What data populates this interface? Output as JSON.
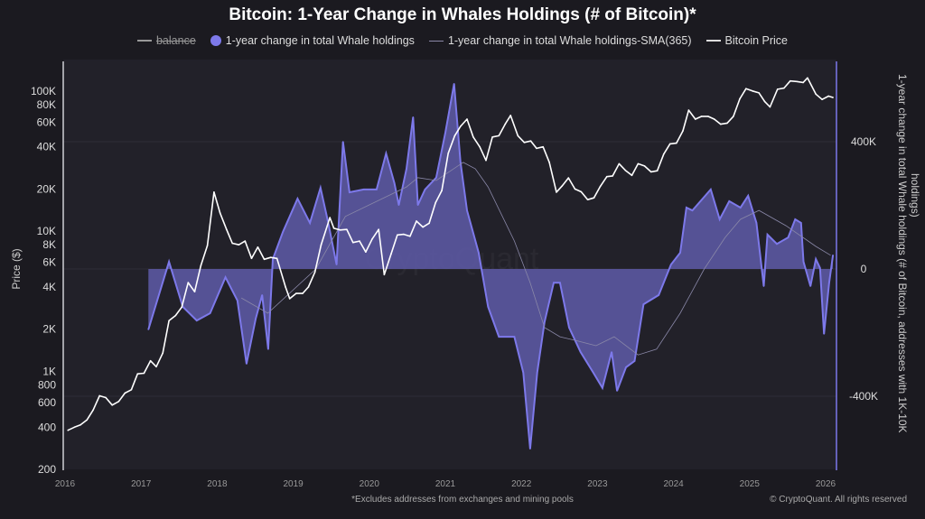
{
  "title": "Bitcoin: 1-Year Change in Whales Holdings (# of Bitcoin)*",
  "legend": [
    {
      "label": "balance",
      "style": "line-disabled"
    },
    {
      "label": "1-year change in total Whale holdings",
      "style": "dot"
    },
    {
      "label": "1-year change in total Whale holdings-SMA(365)",
      "style": "thin-line"
    },
    {
      "label": "Bitcoin Price",
      "style": "line"
    }
  ],
  "footnote": "*Excludes addresses from exchanges and mining pools",
  "copyright": "© CryptoQuant. All rights reserved",
  "watermark": "CryptoQuant",
  "colors": {
    "background": "#1b1a20",
    "whale_fill": "#5e5aa8",
    "whale_line": "#7d79ea",
    "sma": "#8a88a8",
    "price": "#ffffff"
  },
  "chart_data": {
    "type": "line",
    "title": "Bitcoin: 1-Year Change in Whales Holdings (# of Bitcoin)*",
    "xlabel": "",
    "x_ticks": [
      "2016",
      "2017",
      "2018",
      "2019",
      "2020",
      "2021",
      "2022",
      "2023",
      "2024",
      "2025",
      "2026"
    ],
    "y_left": {
      "label": "Price ($)",
      "scale": "log",
      "range": [
        200,
        130000
      ],
      "ticks": [
        {
          "v": 200,
          "t": "200"
        },
        {
          "v": 400,
          "t": "400"
        },
        {
          "v": 600,
          "t": "600"
        },
        {
          "v": 800,
          "t": "800"
        },
        {
          "v": 1000,
          "t": "1K"
        },
        {
          "v": 2000,
          "t": "2K"
        },
        {
          "v": 4000,
          "t": "4K"
        },
        {
          "v": 6000,
          "t": "6K"
        },
        {
          "v": 8000,
          "t": "8K"
        },
        {
          "v": 10000,
          "t": "10K"
        },
        {
          "v": 20000,
          "t": "20K"
        },
        {
          "v": 40000,
          "t": "40K"
        },
        {
          "v": 60000,
          "t": "60K"
        },
        {
          "v": 80000,
          "t": "80K"
        },
        {
          "v": 100000,
          "t": "100K"
        }
      ]
    },
    "y_right": {
      "label": "1-year change in total Whale holdings (# of Bitcoin, addresses with 1K-10K holdings)",
      "scale": "linear",
      "range": [
        -630000,
        650000
      ],
      "ticks": [
        {
          "v": 400000,
          "t": "400K"
        },
        {
          "v": 0,
          "t": "0"
        },
        {
          "v": -400000,
          "t": "-400K"
        }
      ]
    },
    "grid": true,
    "legend_position": "top",
    "series": [
      {
        "name": "1-year change in total Whale holdings",
        "type": "area",
        "axis": "right",
        "points": [
          [
            "2017-02-05",
            -190000
          ],
          [
            "2017-05-15",
            23000
          ],
          [
            "2017-07-20",
            -119000
          ],
          [
            "2017-09-25",
            -162000
          ],
          [
            "2017-11-28",
            -139000
          ],
          [
            "2018-02-10",
            -26000
          ],
          [
            "2018-04-08",
            -99000
          ],
          [
            "2018-05-22",
            -298000
          ],
          [
            "2018-07-05",
            -156000
          ],
          [
            "2018-08-05",
            -82000
          ],
          [
            "2018-09-03",
            -252000
          ],
          [
            "2018-09-25",
            31000
          ],
          [
            "2018-11-12",
            116000
          ],
          [
            "2019-01-22",
            221000
          ],
          [
            "2019-03-22",
            145000
          ],
          [
            "2019-05-12",
            255000
          ],
          [
            "2019-06-18",
            145000
          ],
          [
            "2019-07-28",
            14000
          ],
          [
            "2019-08-28",
            400000
          ],
          [
            "2019-09-28",
            241000
          ],
          [
            "2019-12-05",
            250000
          ],
          [
            "2020-02-05",
            250000
          ],
          [
            "2020-03-22",
            363000
          ],
          [
            "2020-05-01",
            270000
          ],
          [
            "2020-05-22",
            201000
          ],
          [
            "2020-06-28",
            315000
          ],
          [
            "2020-07-30",
            477000
          ],
          [
            "2020-08-22",
            201000
          ],
          [
            "2020-09-25",
            250000
          ],
          [
            "2020-11-18",
            287000
          ],
          [
            "2021-01-01",
            428000
          ],
          [
            "2021-02-12",
            582000
          ],
          [
            "2021-03-15",
            335000
          ],
          [
            "2021-04-15",
            184000
          ],
          [
            "2021-06-10",
            51000
          ],
          [
            "2021-07-25",
            -119000
          ],
          [
            "2021-09-15",
            -213000
          ],
          [
            "2021-11-28",
            -213000
          ],
          [
            "2022-01-10",
            -326000
          ],
          [
            "2022-02-12",
            -565000
          ],
          [
            "2022-03-18",
            -326000
          ],
          [
            "2022-04-22",
            -167000
          ],
          [
            "2022-06-05",
            -43000
          ],
          [
            "2022-07-05",
            -43000
          ],
          [
            "2022-08-18",
            -184000
          ],
          [
            "2022-10-12",
            -261000
          ],
          [
            "2022-12-12",
            -326000
          ],
          [
            "2023-01-25",
            -374000
          ],
          [
            "2023-03-10",
            -261000
          ],
          [
            "2023-04-05",
            -383000
          ],
          [
            "2023-05-18",
            -309000
          ],
          [
            "2023-06-28",
            -289000
          ],
          [
            "2023-08-10",
            -111000
          ],
          [
            "2023-10-22",
            -82000
          ],
          [
            "2023-12-20",
            14000
          ],
          [
            "2024-02-02",
            51000
          ],
          [
            "2024-03-03",
            193000
          ],
          [
            "2024-04-01",
            184000
          ],
          [
            "2024-06-28",
            250000
          ],
          [
            "2024-08-10",
            156000
          ],
          [
            "2024-09-25",
            213000
          ],
          [
            "2024-11-18",
            193000
          ],
          [
            "2024-12-25",
            230000
          ],
          [
            "2025-02-03",
            145000
          ],
          [
            "2025-02-28",
            3000
          ],
          [
            "2025-03-10",
            -54000
          ],
          [
            "2025-03-28",
            108000
          ],
          [
            "2025-05-12",
            79000
          ],
          [
            "2025-07-05",
            99000
          ],
          [
            "2025-08-08",
            156000
          ],
          [
            "2025-09-05",
            145000
          ],
          [
            "2025-09-17",
            23000
          ],
          [
            "2025-10-20",
            -54000
          ],
          [
            "2025-11-15",
            31000
          ],
          [
            "2025-12-05",
            3000
          ],
          [
            "2025-12-24",
            -204000
          ],
          [
            "2026-01-18",
            -43000
          ],
          [
            "2026-02-05",
            43000
          ]
        ]
      },
      {
        "name": "1-year change in total Whale holdings-SMA(365)",
        "type": "line",
        "axis": "right",
        "points": [
          [
            "2018-04-27",
            -91000
          ],
          [
            "2018-09-01",
            -139000
          ],
          [
            "2019-04-20",
            0
          ],
          [
            "2019-09-08",
            165000
          ],
          [
            "2020-06-28",
            258000
          ],
          [
            "2020-08-22",
            287000
          ],
          [
            "2020-11-18",
            278000
          ],
          [
            "2021-03-28",
            335000
          ],
          [
            "2021-05-25",
            315000
          ],
          [
            "2021-07-25",
            258000
          ],
          [
            "2021-11-28",
            88000
          ],
          [
            "2022-02-12",
            -43000
          ],
          [
            "2022-04-22",
            -184000
          ],
          [
            "2022-07-05",
            -213000
          ],
          [
            "2022-09-15",
            -224000
          ],
          [
            "2022-12-25",
            -241000
          ],
          [
            "2023-03-22",
            -213000
          ],
          [
            "2023-07-15",
            -270000
          ],
          [
            "2023-10-12",
            -252000
          ],
          [
            "2024-02-02",
            -139000
          ],
          [
            "2024-05-28",
            0
          ],
          [
            "2024-09-05",
            99000
          ],
          [
            "2024-11-18",
            156000
          ],
          [
            "2025-02-15",
            184000
          ],
          [
            "2025-06-25",
            136000
          ],
          [
            "2025-11-15",
            71000
          ],
          [
            "2026-01-25",
            43000
          ]
        ]
      },
      {
        "name": "Bitcoin Price",
        "type": "line",
        "axis": "left",
        "points": [
          [
            "2016-01-15",
            380
          ],
          [
            "2016-02-15",
            400
          ],
          [
            "2016-03-15",
            415
          ],
          [
            "2016-04-15",
            450
          ],
          [
            "2016-05-15",
            530
          ],
          [
            "2016-06-15",
            670
          ],
          [
            "2016-07-15",
            650
          ],
          [
            "2016-08-15",
            575
          ],
          [
            "2016-09-15",
            610
          ],
          [
            "2016-10-15",
            700
          ],
          [
            "2016-11-15",
            740
          ],
          [
            "2016-12-15",
            960
          ],
          [
            "2017-01-15",
            970
          ],
          [
            "2017-02-15",
            1190
          ],
          [
            "2017-03-15",
            1080
          ],
          [
            "2017-04-15",
            1350
          ],
          [
            "2017-05-15",
            2300
          ],
          [
            "2017-06-15",
            2500
          ],
          [
            "2017-07-15",
            2870
          ],
          [
            "2017-08-15",
            4300
          ],
          [
            "2017-09-15",
            3700
          ],
          [
            "2017-10-15",
            5700
          ],
          [
            "2017-11-15",
            7900
          ],
          [
            "2017-12-17",
            19000
          ],
          [
            "2018-01-15",
            13500
          ],
          [
            "2018-02-15",
            10300
          ],
          [
            "2018-03-15",
            8200
          ],
          [
            "2018-04-15",
            8000
          ],
          [
            "2018-05-15",
            8500
          ],
          [
            "2018-06-15",
            6400
          ],
          [
            "2018-07-15",
            7700
          ],
          [
            "2018-08-15",
            6300
          ],
          [
            "2018-09-15",
            6500
          ],
          [
            "2018-10-15",
            6400
          ],
          [
            "2018-11-25",
            4000
          ],
          [
            "2018-12-15",
            3300
          ],
          [
            "2019-01-15",
            3600
          ],
          [
            "2019-02-15",
            3600
          ],
          [
            "2019-03-15",
            4000
          ],
          [
            "2019-04-15",
            5100
          ],
          [
            "2019-05-15",
            8000
          ],
          [
            "2019-06-26",
            12500
          ],
          [
            "2019-07-15",
            10500
          ],
          [
            "2019-08-15",
            10200
          ],
          [
            "2019-09-15",
            10300
          ],
          [
            "2019-10-15",
            8300
          ],
          [
            "2019-11-15",
            8500
          ],
          [
            "2019-12-15",
            7100
          ],
          [
            "2020-01-15",
            8800
          ],
          [
            "2020-02-15",
            10300
          ],
          [
            "2020-03-13",
            4900
          ],
          [
            "2020-04-15",
            6900
          ],
          [
            "2020-05-15",
            9400
          ],
          [
            "2020-06-15",
            9500
          ],
          [
            "2020-07-15",
            9200
          ],
          [
            "2020-08-15",
            11800
          ],
          [
            "2020-09-15",
            10700
          ],
          [
            "2020-10-15",
            11400
          ],
          [
            "2020-11-15",
            16000
          ],
          [
            "2020-12-15",
            19500
          ],
          [
            "2021-01-15",
            36000
          ],
          [
            "2021-02-15",
            48000
          ],
          [
            "2021-03-15",
            56000
          ],
          [
            "2021-04-15",
            63000
          ],
          [
            "2021-05-15",
            47000
          ],
          [
            "2021-06-15",
            40000
          ],
          [
            "2021-07-15",
            32000
          ],
          [
            "2021-08-15",
            47000
          ],
          [
            "2021-09-15",
            48000
          ],
          [
            "2021-10-15",
            58000
          ],
          [
            "2021-11-10",
            67000
          ],
          [
            "2021-12-15",
            48000
          ],
          [
            "2022-01-15",
            43000
          ],
          [
            "2022-02-15",
            44000
          ],
          [
            "2022-03-15",
            39000
          ],
          [
            "2022-04-15",
            40000
          ],
          [
            "2022-05-15",
            31000
          ],
          [
            "2022-06-18",
            19000
          ],
          [
            "2022-07-15",
            21000
          ],
          [
            "2022-08-15",
            24000
          ],
          [
            "2022-09-15",
            20000
          ],
          [
            "2022-10-15",
            19100
          ],
          [
            "2022-11-15",
            16800
          ],
          [
            "2022-12-15",
            17300
          ],
          [
            "2023-01-15",
            20900
          ],
          [
            "2023-02-15",
            24500
          ],
          [
            "2023-03-15",
            24800
          ],
          [
            "2023-04-15",
            30300
          ],
          [
            "2023-05-15",
            27200
          ],
          [
            "2023-06-15",
            25000
          ],
          [
            "2023-07-15",
            30300
          ],
          [
            "2023-08-15",
            29200
          ],
          [
            "2023-09-15",
            26500
          ],
          [
            "2023-10-15",
            27000
          ],
          [
            "2023-11-15",
            35500
          ],
          [
            "2023-12-15",
            42000
          ],
          [
            "2024-01-15",
            42500
          ],
          [
            "2024-02-15",
            52000
          ],
          [
            "2024-03-14",
            73000
          ],
          [
            "2024-04-15",
            63000
          ],
          [
            "2024-05-15",
            66000
          ],
          [
            "2024-06-15",
            66000
          ],
          [
            "2024-07-15",
            63000
          ],
          [
            "2024-08-15",
            58000
          ],
          [
            "2024-09-15",
            59000
          ],
          [
            "2024-10-15",
            66000
          ],
          [
            "2024-11-15",
            88000
          ],
          [
            "2024-12-15",
            104000
          ],
          [
            "2025-01-15",
            100000
          ],
          [
            "2025-02-15",
            97000
          ],
          [
            "2025-03-15",
            84000
          ],
          [
            "2025-04-09",
            77000
          ],
          [
            "2025-05-15",
            103000
          ],
          [
            "2025-06-15",
            105000
          ],
          [
            "2025-07-15",
            118000
          ],
          [
            "2025-08-15",
            117000
          ],
          [
            "2025-09-15",
            115000
          ],
          [
            "2025-10-06",
            124000
          ],
          [
            "2025-11-15",
            95000
          ],
          [
            "2025-12-15",
            87000
          ],
          [
            "2026-01-15",
            92000
          ],
          [
            "2026-02-05",
            90000
          ]
        ]
      }
    ]
  }
}
